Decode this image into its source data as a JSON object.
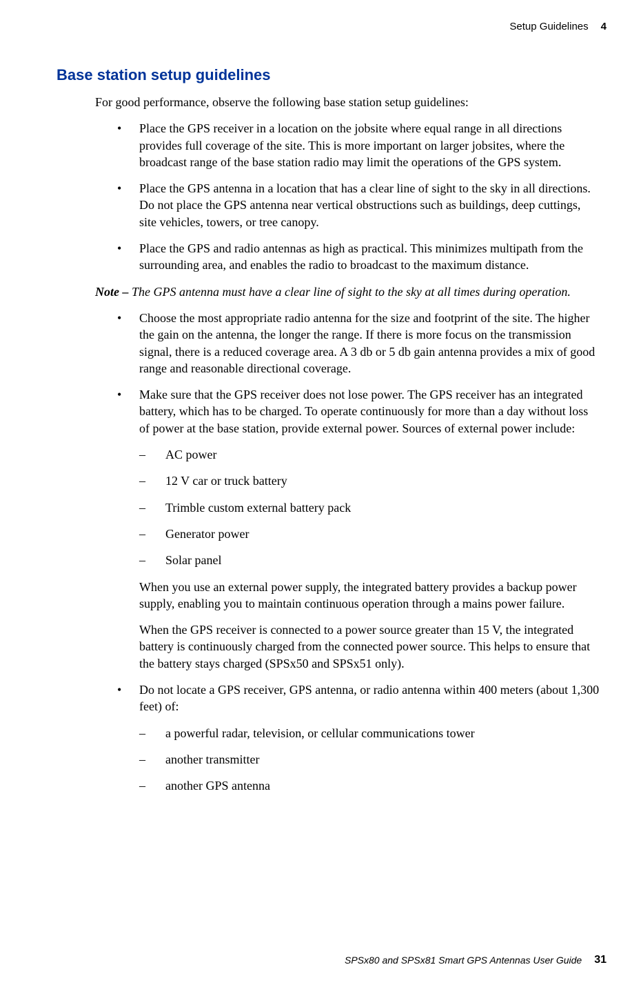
{
  "header": {
    "section": "Setup Guidelines",
    "chapter": "4"
  },
  "heading": "Base station setup guidelines",
  "intro": "For good performance, observe the following base station setup guidelines:",
  "bullets1": [
    "Place the GPS receiver in a location on the jobsite where equal range in all directions provides full coverage of the site. This is more important on larger jobsites, where the broadcast range of the base station radio may limit the operations of the GPS system.",
    "Place the GPS antenna in a location that has a clear line of sight to the sky in all directions. Do not place the GPS antenna near vertical obstructions such as buildings, deep cuttings, site vehicles, towers, or tree canopy.",
    "Place the GPS and radio antennas as high as practical. This minimizes multipath from the surrounding area, and enables the radio to broadcast to the maximum distance."
  ],
  "note": {
    "label": "Note – ",
    "body": "The GPS antenna must have a clear line of sight to the sky at all times during operation."
  },
  "bullet2a": "Choose the most appropriate radio antenna for the size and footprint of the site. The higher the gain on the antenna, the longer the range. If there is more focus on the transmission signal, there is a reduced coverage area. A 3 db or 5 db gain antenna provides a mix of good range and reasonable directional coverage.",
  "bullet2b_main": "Make sure that the GPS receiver does not lose power. The GPS receiver has an integrated battery, which has to be charged. To operate continuously for more than a day without loss of power at the base station, provide external power. Sources of external power include:",
  "bullet2b_sub": [
    "AC power",
    "12 V car or truck battery",
    "Trimble custom external battery pack",
    "Generator power",
    "Solar panel"
  ],
  "bullet2b_para1": "When you use an external power supply, the integrated battery provides a backup power supply, enabling you to maintain continuous operation through a mains power failure.",
  "bullet2b_para2": "When the GPS receiver is connected to a power source greater than 15 V, the integrated battery is continuously charged from the connected power source. This helps to ensure that the battery stays charged (SPSx50 and SPSx51 only).",
  "bullet2c_main": "Do not locate a GPS receiver, GPS antenna, or radio antenna within 400 meters (about 1,300 feet) of:",
  "bullet2c_sub": [
    "a powerful radar, television, or cellular communications tower",
    "another transmitter",
    "another GPS antenna"
  ],
  "footer": {
    "guide": "SPSx80 and SPSx81 Smart GPS Antennas User Guide",
    "page": "31"
  },
  "colors": {
    "heading": "#003399",
    "text": "#000000",
    "background": "#ffffff"
  },
  "typography": {
    "body_font": "Georgia/serif",
    "heading_font": "Arial Black/sans-serif",
    "header_footer_font": "Arial/sans-serif",
    "body_size_pt": 13,
    "heading_size_pt": 17
  }
}
